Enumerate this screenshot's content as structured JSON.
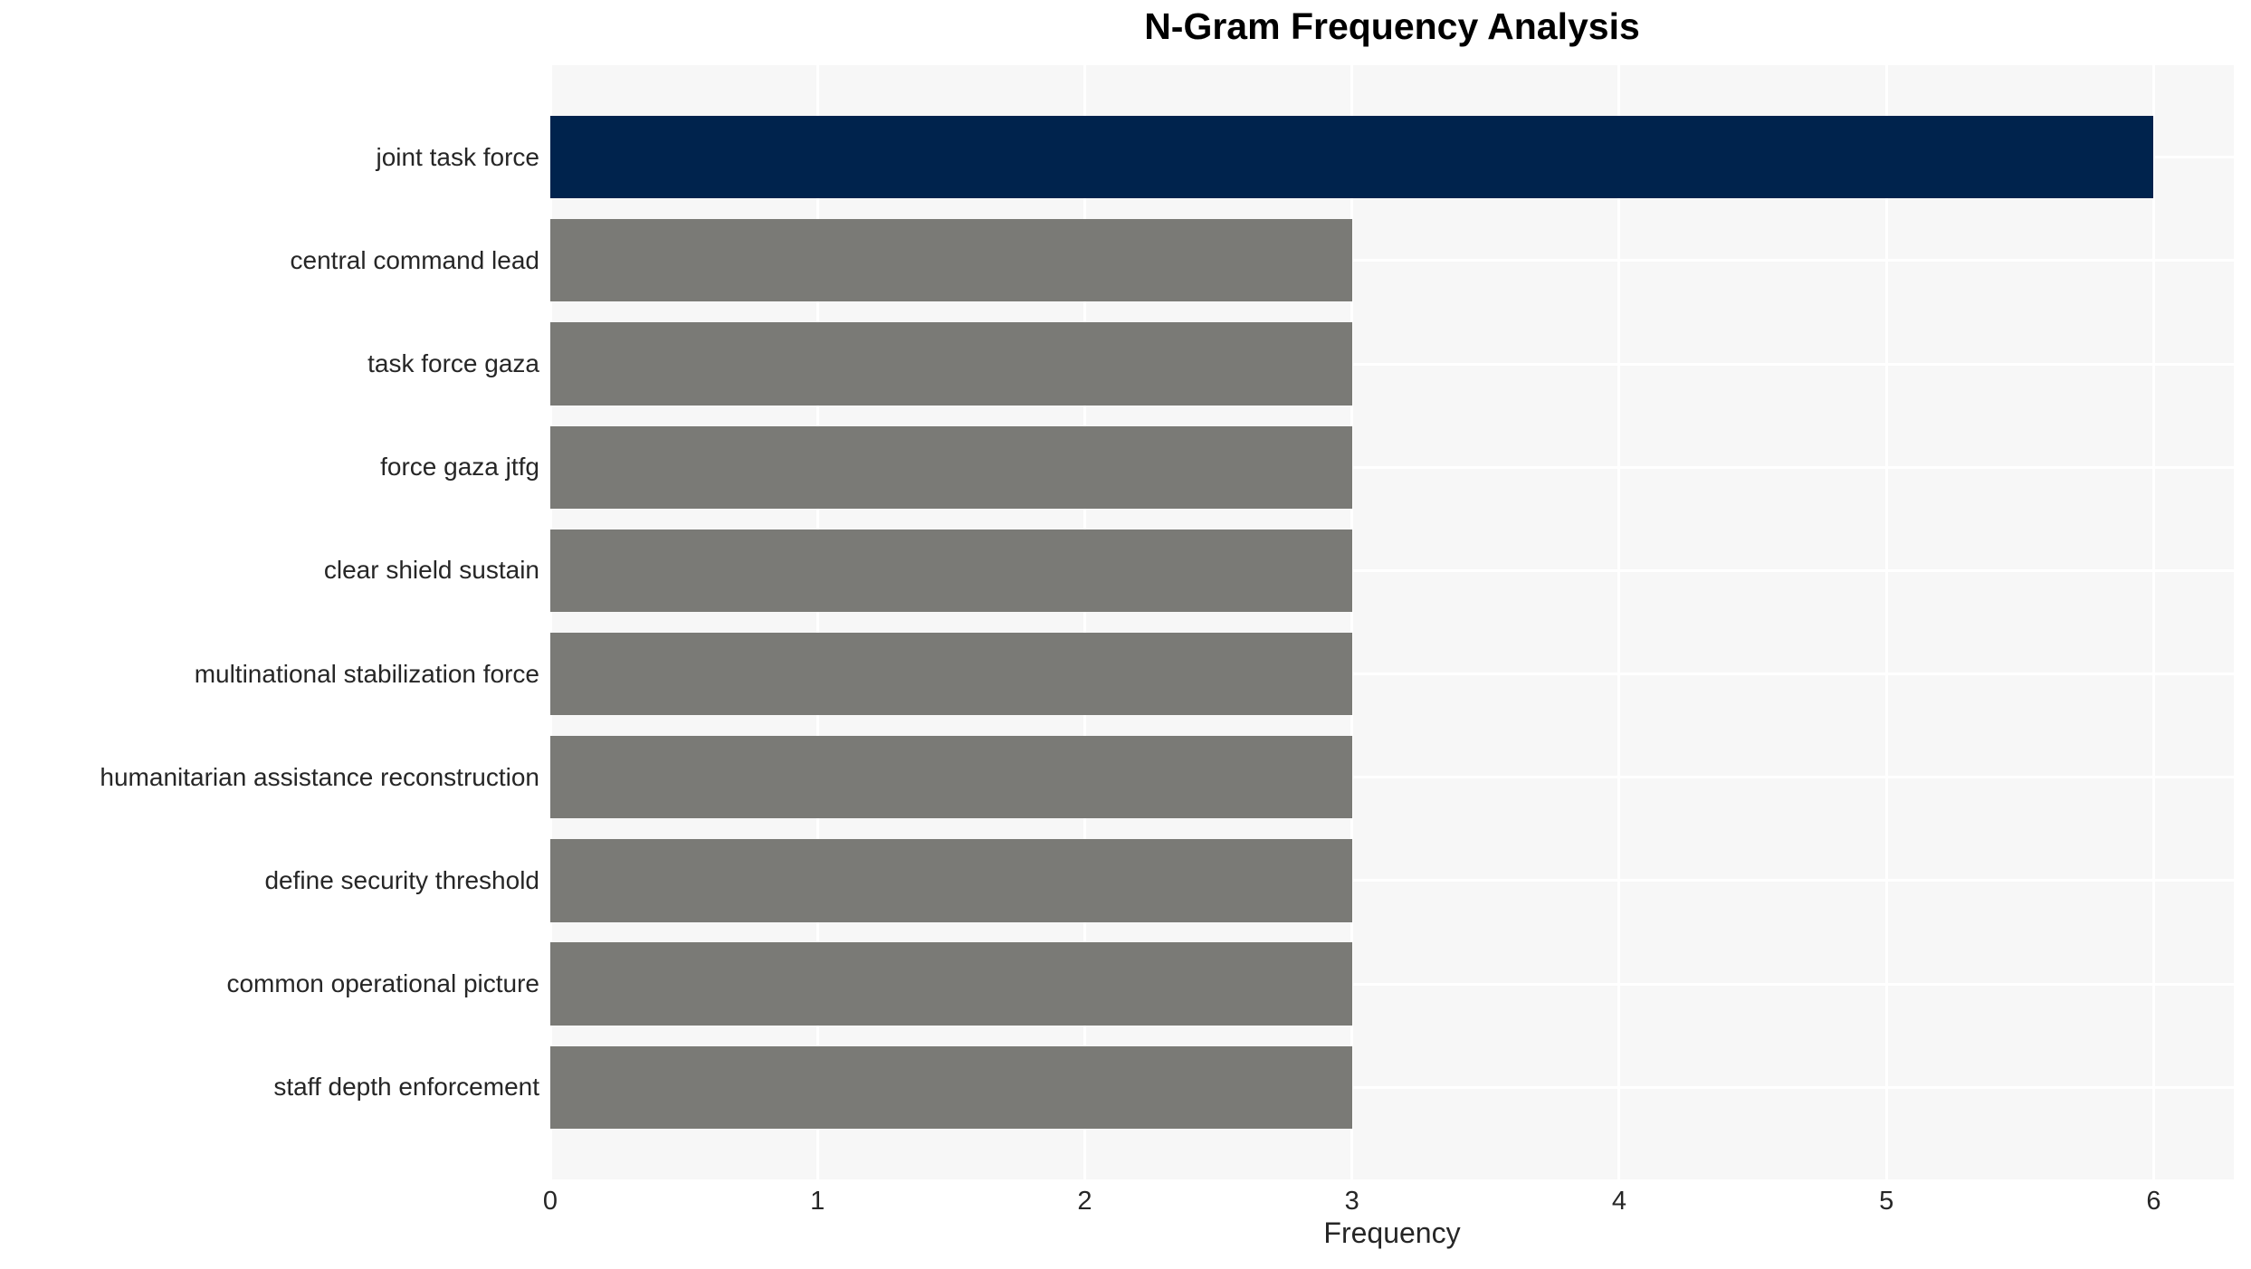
{
  "chart_data": {
    "type": "bar",
    "orientation": "horizontal",
    "title": "N-Gram Frequency Analysis",
    "xlabel": "Frequency",
    "ylabel": "",
    "categories": [
      "joint task force",
      "central command lead",
      "task force gaza",
      "force gaza jtfg",
      "clear shield sustain",
      "multinational stabilization force",
      "humanitarian assistance reconstruction",
      "define security threshold",
      "common operational picture",
      "staff depth enforcement"
    ],
    "values": [
      6,
      3,
      3,
      3,
      3,
      3,
      3,
      3,
      3,
      3
    ],
    "bar_colors": [
      "#00234d",
      "#7a7a76",
      "#7a7a76",
      "#7a7a76",
      "#7a7a76",
      "#7a7a76",
      "#7a7a76",
      "#7a7a76",
      "#7a7a76",
      "#7a7a76"
    ],
    "xticks": [
      0,
      1,
      2,
      3,
      4,
      5,
      6
    ],
    "xlim": [
      0,
      6.3
    ],
    "grid": true,
    "plot_bg_color": "#f7f7f7",
    "grid_color": "#ffffff",
    "highlight_color": "#00234d",
    "default_bar_color": "#7a7a76",
    "legend": null
  }
}
